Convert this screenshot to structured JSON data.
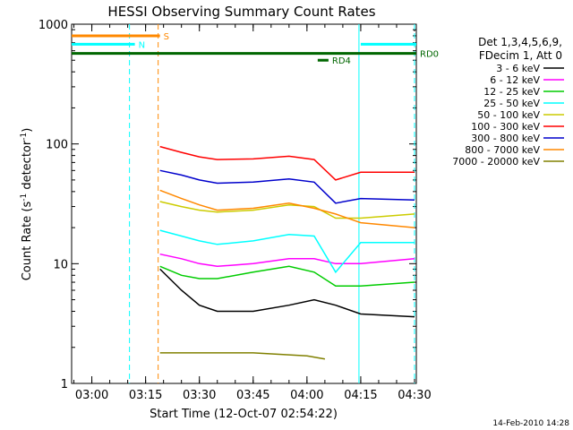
{
  "chart_data": {
    "type": "line",
    "title": "HESSI Observing Summary Count Rates",
    "xlabel": "Start Time (12-Oct-07 02:54:22)",
    "ylabel_main": "Count Rate (s",
    "ylabel_sup1": "-1",
    "ylabel_mid": " detector",
    "ylabel_sup2": "-1",
    "ylabel_end": ")",
    "yscale": "log",
    "ylim": [
      1,
      1000
    ],
    "xlim": [
      "02:54:22",
      "04:30:30"
    ],
    "x_ticks": [
      "03:00",
      "03:15",
      "03:30",
      "03:45",
      "04:00",
      "04:15",
      "04:30"
    ],
    "y_ticks": [
      "1",
      "10",
      "100",
      "1000"
    ],
    "legend_header": [
      "Det 1,3,4,5,6,9,",
      "FDecim 1, Att 0"
    ],
    "legend_position": "right",
    "footer": "14-Feb-2010 14:28",
    "series": [
      {
        "name": "3 - 6 keV",
        "color": "#000000",
        "x": [
          "03:19",
          "03:25",
          "03:30",
          "03:35",
          "03:45",
          "03:55",
          "04:02",
          "04:08",
          "04:15",
          "04:30"
        ],
        "y": [
          9,
          6,
          4.5,
          4,
          4,
          4.5,
          5,
          4.5,
          3.8,
          3.6
        ]
      },
      {
        "name": "6 - 12 keV",
        "color": "#ff00ff",
        "x": [
          "03:19",
          "03:25",
          "03:30",
          "03:35",
          "03:45",
          "03:55",
          "04:02",
          "04:08",
          "04:15",
          "04:30"
        ],
        "y": [
          12,
          11,
          10,
          9.5,
          10,
          11,
          11,
          10,
          10,
          11
        ]
      },
      {
        "name": "12 - 25 keV",
        "color": "#00cc00",
        "x": [
          "03:19",
          "03:25",
          "03:30",
          "03:35",
          "03:45",
          "03:55",
          "04:02",
          "04:08",
          "04:15",
          "04:30"
        ],
        "y": [
          9.5,
          8,
          7.5,
          7.5,
          8.5,
          9.5,
          8.5,
          6.5,
          6.5,
          7
        ]
      },
      {
        "name": "25 - 50 keV",
        "color": "#00ffff",
        "x": [
          "03:19",
          "03:25",
          "03:30",
          "03:35",
          "03:45",
          "03:55",
          "04:02",
          "04:08",
          "04:15",
          "04:30"
        ],
        "y": [
          19,
          17,
          15.5,
          14.5,
          15.5,
          17.5,
          17,
          8.5,
          15,
          15
        ]
      },
      {
        "name": "50 - 100 keV",
        "color": "#cccc00",
        "x": [
          "03:19",
          "03:25",
          "03:30",
          "03:35",
          "03:45",
          "03:55",
          "04:02",
          "04:08",
          "04:15",
          "04:30"
        ],
        "y": [
          33,
          30,
          28,
          27,
          28,
          31,
          30,
          24,
          24,
          26
        ]
      },
      {
        "name": "100 - 300 keV",
        "color": "#ff0000",
        "x": [
          "03:19",
          "03:25",
          "03:30",
          "03:35",
          "03:45",
          "03:55",
          "04:02",
          "04:08",
          "04:15",
          "04:30"
        ],
        "y": [
          95,
          85,
          78,
          74,
          75,
          79,
          74,
          50,
          58,
          58
        ]
      },
      {
        "name": "300 - 800 keV",
        "color": "#0000cc",
        "x": [
          "03:19",
          "03:25",
          "03:30",
          "03:35",
          "03:45",
          "03:55",
          "04:02",
          "04:08",
          "04:15",
          "04:30"
        ],
        "y": [
          60,
          55,
          50,
          47,
          48,
          51,
          48,
          32,
          35,
          34
        ]
      },
      {
        "name": "800 - 7000 keV",
        "color": "#ff8800",
        "x": [
          "03:19",
          "03:25",
          "03:30",
          "03:35",
          "03:45",
          "03:55",
          "04:02",
          "04:08",
          "04:15",
          "04:30"
        ],
        "y": [
          41,
          35,
          31,
          28,
          29,
          32,
          29,
          26,
          22,
          20
        ]
      },
      {
        "name": "7000 - 20000 keV",
        "color": "#808000",
        "x": [
          "03:19",
          "03:45",
          "04:00",
          "04:05"
        ],
        "y": [
          1.8,
          1.8,
          1.7,
          1.6
        ]
      }
    ],
    "flag_lines": [
      {
        "label": "S",
        "color": "#ff8800",
        "x": [
          "02:54:22",
          "03:19"
        ],
        "y": 800
      },
      {
        "label": "N",
        "color": "#00ffff",
        "x": [
          "02:54:22",
          "03:12"
        ],
        "y": 680
      },
      {
        "label": "",
        "color": "#00ffff",
        "x": [
          "04:15",
          "04:30:30"
        ],
        "y": 680
      },
      {
        "label": "RD0",
        "color": "#006600",
        "x": [
          "02:54:22",
          "04:30:30"
        ],
        "y": 570
      },
      {
        "label": "RD4",
        "color": "#006600",
        "x": [
          "04:03",
          "04:06"
        ],
        "y": 500
      }
    ],
    "vlines": [
      {
        "x": "03:10:30",
        "color": "#00ffff",
        "style": "dashed"
      },
      {
        "x": "03:18:30",
        "color": "#ff8800",
        "style": "dashed"
      },
      {
        "x": "04:14:30",
        "color": "#00ffff",
        "style": "solid"
      },
      {
        "x": "04:30:00",
        "color": "#00ffff",
        "style": "dashed"
      }
    ]
  }
}
